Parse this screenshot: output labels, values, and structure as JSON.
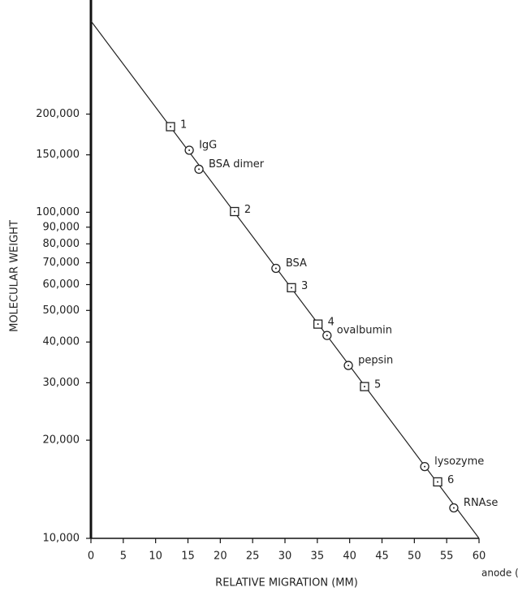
{
  "chart_data": {
    "type": "scatter",
    "xlabel": "RELATIVE MIGRATION (MM)",
    "ylabel": "MOLECULAR WEIGHT",
    "x_end_label": "anode (+)",
    "log_y": true,
    "xlim": [
      0,
      60
    ],
    "ylim": [
      10000,
      430000
    ],
    "xticks": [
      0,
      5,
      10,
      15,
      20,
      25,
      30,
      35,
      40,
      45,
      50,
      55,
      60
    ],
    "yticks": [
      {
        "value": 10000,
        "label": "10,000"
      },
      {
        "value": 20000,
        "label": "20,000"
      },
      {
        "value": 30000,
        "label": "30,000"
      },
      {
        "value": 40000,
        "label": "40,000"
      },
      {
        "value": 50000,
        "label": "50,000"
      },
      {
        "value": 60000,
        "label": "60,000"
      },
      {
        "value": 70000,
        "label": "70,000"
      },
      {
        "value": 80000,
        "label": "80,000"
      },
      {
        "value": 90000,
        "label": "90,000"
      },
      {
        "value": 100000,
        "label": "100,000"
      },
      {
        "value": 150000,
        "label": "150,000"
      },
      {
        "value": 200000,
        "label": "200,000"
      }
    ],
    "fit_line": {
      "x": [
        0,
        60
      ],
      "values": [
        386000,
        10000
      ],
      "color": "#222222"
    },
    "series": [
      {
        "marker": "square",
        "color": "#222222",
        "labels": [
          "1",
          "2",
          "3",
          "4",
          "5",
          "6"
        ],
        "x": [
          12.3,
          22.2,
          31.0,
          35.1,
          42.3,
          53.6
        ],
        "values": [
          183000,
          100500,
          58700,
          45400,
          29200,
          14900
        ]
      },
      {
        "marker": "circle",
        "color": "#222222",
        "labels": [
          "IgG",
          "BSA dimer",
          "BSA",
          "ovalbumin",
          "pepsin",
          "lysozyme",
          "RNAse"
        ],
        "x": [
          15.2,
          16.7,
          28.6,
          36.5,
          39.8,
          51.6,
          56.1
        ],
        "values": [
          155000,
          135500,
          67300,
          41900,
          33900,
          16600,
          12400
        ]
      }
    ]
  }
}
